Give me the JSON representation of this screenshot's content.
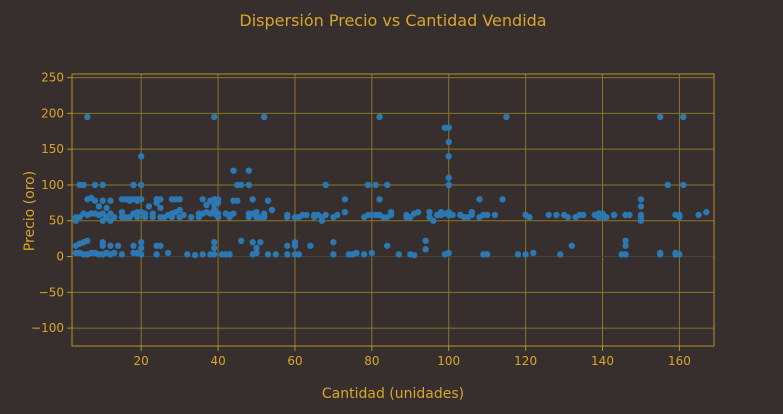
{
  "chart_data": {
    "type": "scatter",
    "title": "Dispersión Precio vs Cantidad Vendida",
    "xlabel": "Cantidad (unidades)",
    "ylabel": "Precio (oro)",
    "xlim": [
      2,
      169
    ],
    "ylim": [
      -125,
      255
    ],
    "xticks": [
      20,
      40,
      60,
      80,
      100,
      120,
      140,
      160
    ],
    "yticks": [
      -100,
      -50,
      0,
      50,
      100,
      150,
      200,
      250
    ],
    "grid": true,
    "colors": {
      "background": "#362f2d",
      "text": "#d9a52a",
      "grid": "#8c7526",
      "point": "#2b78b3"
    },
    "points": [
      [
        3,
        5
      ],
      [
        3,
        15
      ],
      [
        3,
        50
      ],
      [
        3,
        55
      ],
      [
        4,
        100
      ],
      [
        4,
        55
      ],
      [
        4,
        18
      ],
      [
        4,
        5
      ],
      [
        5,
        100
      ],
      [
        5,
        60
      ],
      [
        5,
        20
      ],
      [
        5,
        3
      ],
      [
        6,
        195
      ],
      [
        6,
        80
      ],
      [
        6,
        58
      ],
      [
        6,
        22
      ],
      [
        6,
        3
      ],
      [
        7,
        82
      ],
      [
        7,
        60
      ],
      [
        7,
        5
      ],
      [
        8,
        100
      ],
      [
        8,
        78
      ],
      [
        8,
        60
      ],
      [
        8,
        5
      ],
      [
        9,
        58
      ],
      [
        9,
        70
      ],
      [
        9,
        3
      ],
      [
        10,
        100
      ],
      [
        10,
        78
      ],
      [
        10,
        60
      ],
      [
        10,
        50
      ],
      [
        10,
        20
      ],
      [
        10,
        15
      ],
      [
        10,
        3
      ],
      [
        11,
        55
      ],
      [
        11,
        68
      ],
      [
        11,
        5
      ],
      [
        12,
        78
      ],
      [
        12,
        60
      ],
      [
        12,
        50
      ],
      [
        12,
        15
      ],
      [
        12,
        3
      ],
      [
        13,
        55
      ],
      [
        13,
        5
      ],
      [
        14,
        15
      ],
      [
        15,
        80
      ],
      [
        15,
        62
      ],
      [
        15,
        55
      ],
      [
        15,
        3
      ],
      [
        16,
        80
      ],
      [
        16,
        55
      ],
      [
        17,
        80
      ],
      [
        17,
        78
      ],
      [
        17,
        55
      ],
      [
        18,
        100
      ],
      [
        18,
        80
      ],
      [
        18,
        60
      ],
      [
        18,
        15
      ],
      [
        18,
        5
      ],
      [
        19,
        80
      ],
      [
        19,
        78
      ],
      [
        19,
        62
      ],
      [
        19,
        60
      ],
      [
        19,
        55
      ],
      [
        19,
        5
      ],
      [
        20,
        140
      ],
      [
        20,
        100
      ],
      [
        20,
        80
      ],
      [
        20,
        62
      ],
      [
        20,
        20
      ],
      [
        20,
        12
      ],
      [
        20,
        3
      ],
      [
        21,
        60
      ],
      [
        21,
        55
      ],
      [
        22,
        70
      ],
      [
        23,
        60
      ],
      [
        23,
        55
      ],
      [
        24,
        80
      ],
      [
        24,
        75
      ],
      [
        24,
        15
      ],
      [
        24,
        3
      ],
      [
        25,
        80
      ],
      [
        25,
        68
      ],
      [
        25,
        55
      ],
      [
        25,
        15
      ],
      [
        26,
        55
      ],
      [
        27,
        58
      ],
      [
        27,
        5
      ],
      [
        28,
        80
      ],
      [
        28,
        60
      ],
      [
        28,
        55
      ],
      [
        29,
        80
      ],
      [
        29,
        62
      ],
      [
        30,
        80
      ],
      [
        30,
        65
      ],
      [
        30,
        55
      ],
      [
        31,
        58
      ],
      [
        32,
        3
      ],
      [
        33,
        55
      ],
      [
        34,
        2
      ],
      [
        35,
        60
      ],
      [
        35,
        55
      ],
      [
        36,
        80
      ],
      [
        36,
        60
      ],
      [
        36,
        3
      ],
      [
        37,
        72
      ],
      [
        37,
        62
      ],
      [
        38,
        78
      ],
      [
        38,
        60
      ],
      [
        38,
        3
      ],
      [
        39,
        195
      ],
      [
        39,
        80
      ],
      [
        39,
        72
      ],
      [
        39,
        65
      ],
      [
        39,
        60
      ],
      [
        39,
        20
      ],
      [
        39,
        12
      ],
      [
        39,
        3
      ],
      [
        40,
        80
      ],
      [
        40,
        75
      ],
      [
        40,
        60
      ],
      [
        40,
        55
      ],
      [
        41,
        3
      ],
      [
        42,
        60
      ],
      [
        42,
        3
      ],
      [
        43,
        58
      ],
      [
        43,
        55
      ],
      [
        43,
        3
      ],
      [
        44,
        120
      ],
      [
        44,
        78
      ],
      [
        44,
        60
      ],
      [
        45,
        100
      ],
      [
        45,
        78
      ],
      [
        46,
        100
      ],
      [
        46,
        22
      ],
      [
        48,
        120
      ],
      [
        48,
        100
      ],
      [
        48,
        60
      ],
      [
        48,
        55
      ],
      [
        49,
        80
      ],
      [
        49,
        60
      ],
      [
        49,
        20
      ],
      [
        49,
        3
      ],
      [
        50,
        62
      ],
      [
        50,
        55
      ],
      [
        50,
        12
      ],
      [
        50,
        5
      ],
      [
        51,
        55
      ],
      [
        51,
        20
      ],
      [
        52,
        195
      ],
      [
        52,
        60
      ],
      [
        52,
        55
      ],
      [
        53,
        78
      ],
      [
        53,
        3
      ],
      [
        54,
        65
      ],
      [
        55,
        3
      ],
      [
        58,
        58
      ],
      [
        58,
        55
      ],
      [
        58,
        15
      ],
      [
        58,
        3
      ],
      [
        60,
        55
      ],
      [
        60,
        20
      ],
      [
        60,
        15
      ],
      [
        60,
        3
      ],
      [
        61,
        55
      ],
      [
        61,
        3
      ],
      [
        62,
        58
      ],
      [
        63,
        58
      ],
      [
        64,
        15
      ],
      [
        65,
        55
      ],
      [
        65,
        58
      ],
      [
        66,
        58
      ],
      [
        67,
        55
      ],
      [
        67,
        50
      ],
      [
        68,
        100
      ],
      [
        68,
        58
      ],
      [
        70,
        55
      ],
      [
        70,
        20
      ],
      [
        70,
        3
      ],
      [
        71,
        58
      ],
      [
        73,
        80
      ],
      [
        73,
        62
      ],
      [
        74,
        3
      ],
      [
        75,
        3
      ],
      [
        76,
        5
      ],
      [
        78,
        55
      ],
      [
        78,
        3
      ],
      [
        79,
        100
      ],
      [
        79,
        58
      ],
      [
        80,
        58
      ],
      [
        80,
        5
      ],
      [
        81,
        100
      ],
      [
        81,
        58
      ],
      [
        82,
        195
      ],
      [
        82,
        80
      ],
      [
        82,
        58
      ],
      [
        83,
        55
      ],
      [
        84,
        100
      ],
      [
        84,
        15
      ],
      [
        84,
        55
      ],
      [
        85,
        62
      ],
      [
        85,
        58
      ],
      [
        87,
        3
      ],
      [
        89,
        58
      ],
      [
        89,
        55
      ],
      [
        90,
        55
      ],
      [
        90,
        3
      ],
      [
        91,
        60
      ],
      [
        91,
        2
      ],
      [
        92,
        62
      ],
      [
        94,
        22
      ],
      [
        94,
        10
      ],
      [
        95,
        62
      ],
      [
        95,
        55
      ],
      [
        96,
        50
      ],
      [
        97,
        58
      ],
      [
        98,
        62
      ],
      [
        98,
        58
      ],
      [
        99,
        180
      ],
      [
        99,
        60
      ],
      [
        99,
        3
      ],
      [
        100,
        180
      ],
      [
        100,
        160
      ],
      [
        100,
        140
      ],
      [
        100,
        110
      ],
      [
        100,
        100
      ],
      [
        100,
        62
      ],
      [
        100,
        58
      ],
      [
        100,
        5
      ],
      [
        101,
        58
      ],
      [
        103,
        58
      ],
      [
        104,
        55
      ],
      [
        105,
        55
      ],
      [
        106,
        62
      ],
      [
        106,
        58
      ],
      [
        108,
        80
      ],
      [
        108,
        55
      ],
      [
        109,
        58
      ],
      [
        109,
        3
      ],
      [
        110,
        58
      ],
      [
        110,
        3
      ],
      [
        112,
        58
      ],
      [
        114,
        80
      ],
      [
        115,
        195
      ],
      [
        118,
        3
      ],
      [
        120,
        58
      ],
      [
        120,
        3
      ],
      [
        121,
        55
      ],
      [
        122,
        5
      ],
      [
        126,
        58
      ],
      [
        128,
        58
      ],
      [
        129,
        3
      ],
      [
        130,
        58
      ],
      [
        131,
        55
      ],
      [
        132,
        15
      ],
      [
        133,
        55
      ],
      [
        134,
        58
      ],
      [
        135,
        58
      ],
      [
        138,
        58
      ],
      [
        139,
        60
      ],
      [
        139,
        55
      ],
      [
        140,
        60
      ],
      [
        140,
        55
      ],
      [
        141,
        55
      ],
      [
        143,
        58
      ],
      [
        143,
        58
      ],
      [
        145,
        3
      ],
      [
        146,
        58
      ],
      [
        146,
        22
      ],
      [
        146,
        15
      ],
      [
        146,
        3
      ],
      [
        147,
        58
      ],
      [
        150,
        80
      ],
      [
        150,
        70
      ],
      [
        150,
        58
      ],
      [
        150,
        55
      ],
      [
        150,
        50
      ],
      [
        155,
        195
      ],
      [
        155,
        5
      ],
      [
        155,
        3
      ],
      [
        157,
        100
      ],
      [
        159,
        58
      ],
      [
        159,
        5
      ],
      [
        159,
        3
      ],
      [
        160,
        58
      ],
      [
        160,
        55
      ],
      [
        160,
        3
      ],
      [
        161,
        195
      ],
      [
        161,
        100
      ],
      [
        165,
        58
      ],
      [
        167,
        62
      ]
    ]
  }
}
